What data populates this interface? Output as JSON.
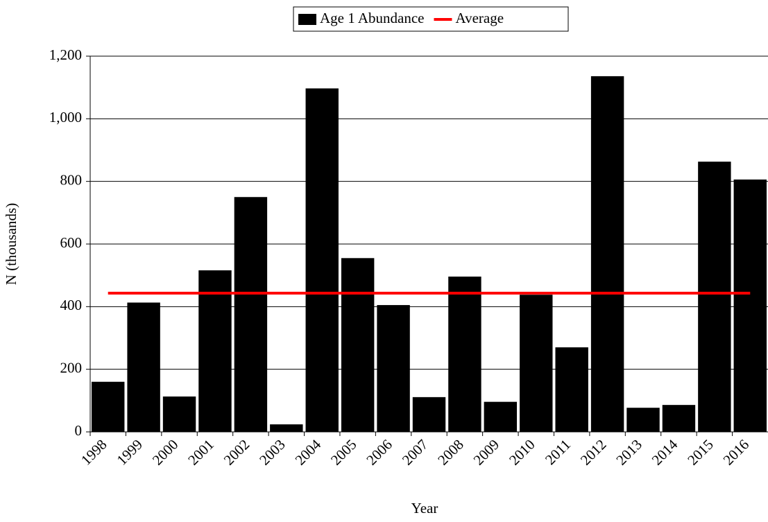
{
  "chart_data": {
    "type": "bar",
    "y_label": "N (thousands)",
    "x_label": "Year",
    "categories": [
      "1998",
      "1999",
      "2000",
      "2001",
      "2002",
      "2003",
      "2004",
      "2005",
      "2006",
      "2007",
      "2008",
      "2009",
      "2010",
      "2011",
      "2012",
      "2013",
      "2014",
      "2015",
      "2016"
    ],
    "series": [
      {
        "name": "Age 1 Abundance",
        "color": "#000000",
        "type": "bar",
        "values": [
          160,
          413,
          113,
          516,
          750,
          24,
          1097,
          555,
          405,
          111,
          496,
          96,
          438,
          270,
          1136,
          77,
          86,
          863,
          806
        ]
      },
      {
        "name": "Average",
        "color": "#ff0000",
        "type": "line",
        "values": [
          443,
          443,
          443,
          443,
          443,
          443,
          443,
          443,
          443,
          443,
          443,
          443,
          443,
          443,
          443,
          443,
          443,
          443,
          443
        ]
      }
    ],
    "ylim": [
      0,
      1200
    ],
    "yticks": [
      0,
      200,
      400,
      600,
      800,
      {
        "value": 1000,
        "label": "1,000"
      },
      {
        "value": 1200,
        "label": "1,200"
      }
    ],
    "grid": true
  }
}
